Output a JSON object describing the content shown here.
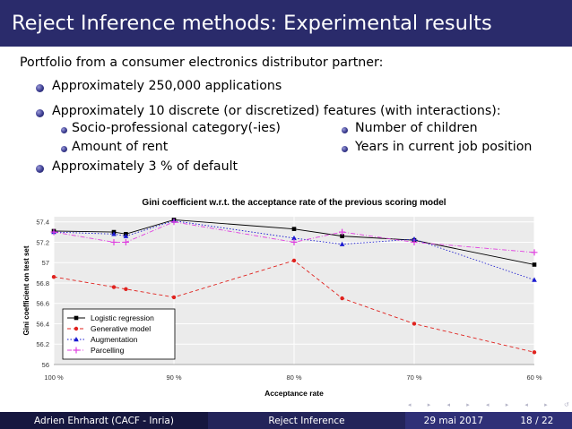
{
  "slide": {
    "title": "Reject Inference methods: Experimental results",
    "intro": "Portfolio from a consumer electronics distributor partner:",
    "bullets": [
      "Approximately 250,000 applications",
      "Approximately 10 discrete (or discretized) features (with interactions):",
      "Approximately 3 % of default"
    ],
    "sub_bullets_left": [
      "Socio-professional category(-ies)",
      "Amount of rent"
    ],
    "sub_bullets_right": [
      "Number of children",
      "Years in current job position"
    ]
  },
  "footer": {
    "author": "Adrien Ehrhardt  (CACF - Inria)",
    "short_title": "Reject Inference",
    "date": "29 mai 2017",
    "page": "18 / 22"
  },
  "chart_data": {
    "type": "line",
    "title": "Gini coefficient w.r.t. the acceptance rate of the previous scoring model",
    "xlabel": "Acceptance rate",
    "ylabel": "Gini coefficient on test set",
    "x_ticks": [
      "100 %",
      "90 %",
      "80 %",
      "70 %",
      "60 %"
    ],
    "y_ticks": [
      "56",
      "56.2",
      "56.4",
      "56.6",
      "56.8",
      "57",
      "57.2",
      "57.4"
    ],
    "xlim": [
      100,
      60
    ],
    "ylim": [
      56,
      57.45
    ],
    "legend_position": "bottom-left",
    "series": [
      {
        "name": "Logistic regression",
        "color": "#000000",
        "marker": "square",
        "dash": "",
        "x": [
          100,
          95,
          94,
          90,
          80,
          76,
          70,
          60
        ],
        "y": [
          57.31,
          57.3,
          57.28,
          57.42,
          57.33,
          57.26,
          57.22,
          56.98
        ]
      },
      {
        "name": "Generative model",
        "color": "#e0221e",
        "marker": "circle",
        "dash": "4,3",
        "x": [
          100,
          95,
          94,
          90,
          80,
          76,
          70,
          60
        ],
        "y": [
          56.86,
          56.76,
          56.74,
          56.66,
          57.02,
          56.65,
          56.4,
          56.12
        ]
      },
      {
        "name": "Augmentation",
        "color": "#1a1ad0",
        "marker": "triangle",
        "dash": "1.5,2",
        "x": [
          100,
          95,
          94,
          90,
          80,
          76,
          70,
          60
        ],
        "y": [
          57.3,
          57.28,
          57.26,
          57.41,
          57.24,
          57.18,
          57.23,
          56.83
        ]
      },
      {
        "name": "Parcelling",
        "color": "#e040e0",
        "marker": "plus",
        "dash": "5,2,1,2",
        "x": [
          100,
          95,
          94,
          90,
          80,
          76,
          70,
          60
        ],
        "y": [
          57.3,
          57.2,
          57.2,
          57.4,
          57.2,
          57.3,
          57.2,
          57.1
        ]
      }
    ]
  }
}
